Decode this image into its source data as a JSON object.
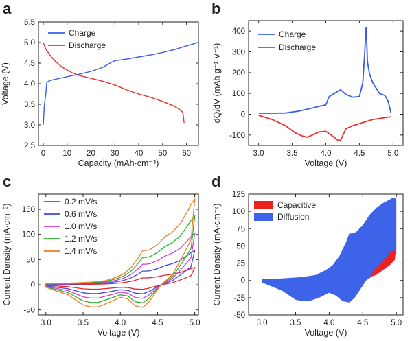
{
  "chart_data": [
    {
      "panel": "a",
      "type": "line",
      "xlabel": "Capacity (mAh·cm⁻³)",
      "ylabel": "Voltage (V)",
      "xlim": [
        -2,
        65
      ],
      "ylim": [
        2.5,
        5.5
      ],
      "xticks": [
        0,
        10,
        20,
        30,
        40,
        50,
        60
      ],
      "yticks": [
        2.5,
        3.0,
        3.5,
        4.0,
        4.5,
        5.0,
        5.5
      ],
      "legend": "top-left",
      "grid": false,
      "series": [
        {
          "name": "Charge",
          "color": "#3a5fe6",
          "x": [
            0,
            0.5,
            1,
            1.5,
            3,
            6,
            10,
            15,
            20,
            25,
            28,
            30,
            35,
            40,
            45,
            50,
            55,
            60,
            63,
            64.5
          ],
          "y": [
            3.0,
            3.5,
            3.7,
            4.04,
            4.08,
            4.12,
            4.17,
            4.23,
            4.3,
            4.4,
            4.5,
            4.56,
            4.6,
            4.65,
            4.7,
            4.76,
            4.83,
            4.92,
            4.97,
            5.0
          ]
        },
        {
          "name": "Discharge",
          "color": "#ee2d2d",
          "x": [
            0,
            1,
            3,
            5,
            8,
            12,
            15,
            20,
            25,
            30,
            35,
            40,
            45,
            50,
            55,
            57,
            58.5,
            58.8,
            59
          ],
          "y": [
            5.0,
            4.85,
            4.68,
            4.55,
            4.4,
            4.27,
            4.2,
            4.13,
            4.06,
            3.97,
            3.85,
            3.75,
            3.67,
            3.57,
            3.45,
            3.38,
            3.3,
            3.15,
            3.05
          ]
        }
      ]
    },
    {
      "panel": "b",
      "type": "line",
      "xlabel": "Voltage (V)",
      "ylabel": "dQ/dV (mAh g⁻¹ V⁻¹)",
      "xlim": [
        2.85,
        5.15
      ],
      "ylim": [
        -150,
        450
      ],
      "xticks": [
        3.0,
        3.5,
        4.0,
        4.5,
        5.0
      ],
      "yticks": [
        -100,
        0,
        100,
        200,
        300,
        400
      ],
      "legend": "top-left",
      "grid": false,
      "series": [
        {
          "name": "Charge",
          "color": "#3a5fe6",
          "x": [
            3.0,
            3.2,
            3.4,
            3.6,
            3.8,
            3.9,
            4.0,
            4.05,
            4.1,
            4.15,
            4.22,
            4.3,
            4.4,
            4.5,
            4.55,
            4.58,
            4.6,
            4.62,
            4.65,
            4.7,
            4.8,
            4.88,
            4.93,
            4.97
          ],
          "y": [
            5,
            5,
            6,
            15,
            30,
            38,
            45,
            85,
            95,
            105,
            118,
            95,
            82,
            85,
            150,
            300,
            420,
            250,
            195,
            150,
            100,
            90,
            60,
            5
          ]
        },
        {
          "name": "Discharge",
          "color": "#ee2d2d",
          "x": [
            3.0,
            3.2,
            3.4,
            3.55,
            3.65,
            3.72,
            3.8,
            3.9,
            4.0,
            4.1,
            4.18,
            4.22,
            4.3,
            4.4,
            4.5,
            4.6,
            4.7,
            4.8,
            4.9,
            4.97
          ],
          "y": [
            -5,
            -25,
            -55,
            -90,
            -105,
            -110,
            -100,
            -85,
            -82,
            -105,
            -125,
            -125,
            -70,
            -55,
            -45,
            -35,
            -25,
            -20,
            -15,
            -12
          ]
        }
      ]
    },
    {
      "panel": "c",
      "type": "line",
      "xlabel": "Voltage (V)",
      "ylabel": "Current Density (mA·cm⁻³)",
      "xlim": [
        2.9,
        5.05
      ],
      "ylim": [
        -60,
        180
      ],
      "xticks": [
        3.0,
        3.5,
        4.0,
        4.5,
        5.0
      ],
      "yticks": [
        -50,
        0,
        50,
        100,
        150
      ],
      "legend": "top-left",
      "grid": false,
      "series": [
        {
          "name": "0.2 mV/s",
          "color": "#e8242a",
          "scale": 0.2
        },
        {
          "name": "0.6 mV/s",
          "color": "#3b48e0",
          "scale": 0.4
        },
        {
          "name": "1.0 mV/s",
          "color": "#d13cdc",
          "scale": 0.6
        },
        {
          "name": "1.2 mV/s",
          "color": "#25b42a",
          "scale": 0.8
        },
        {
          "name": "1.4 mV/s",
          "color": "#f07d24",
          "scale": 1.0
        }
      ],
      "reference_curve_1p4": {
        "anodic_x": [
          3.0,
          3.3,
          3.6,
          3.8,
          3.95,
          4.05,
          4.15,
          4.25,
          4.3,
          4.35,
          4.4,
          4.5,
          4.6,
          4.7,
          4.8,
          4.9,
          4.95,
          5.0
        ],
        "anodic_y": [
          2,
          3,
          5,
          8,
          15,
          22,
          35,
          55,
          68,
          68,
          70,
          80,
          95,
          105,
          120,
          145,
          160,
          170
        ],
        "cathodic_x": [
          5.0,
          4.95,
          4.85,
          4.7,
          4.55,
          4.45,
          4.38,
          4.3,
          4.2,
          4.1,
          4.0,
          3.85,
          3.7,
          3.6,
          3.5,
          3.3,
          3.0
        ],
        "cathodic_y": [
          170,
          90,
          60,
          20,
          0,
          -20,
          -35,
          -45,
          -42,
          -28,
          -25,
          -35,
          -44,
          -44,
          -40,
          -20,
          -5
        ]
      }
    },
    {
      "panel": "d",
      "type": "area",
      "xlabel": "Voltage (V)",
      "ylabel": "Current Density (mA·cm⁻³)",
      "xlim": [
        2.8,
        5.1
      ],
      "ylim": [
        -50,
        125
      ],
      "xticks": [
        3.0,
        3.5,
        4.0,
        4.5,
        5.0
      ],
      "yticks": [
        -50,
        -25,
        0,
        25,
        50,
        75,
        100,
        125
      ],
      "legend": "top-left",
      "grid": false,
      "series": [
        {
          "name": "Diffusion",
          "color": "#3d63e8",
          "upper_x": [
            3.0,
            3.3,
            3.6,
            3.8,
            3.95,
            4.05,
            4.15,
            4.25,
            4.3,
            4.35,
            4.4,
            4.5,
            4.6,
            4.7,
            4.8,
            4.9,
            4.95,
            5.0
          ],
          "upper_y": [
            2,
            3,
            5,
            8,
            15,
            22,
            35,
            55,
            68,
            68,
            70,
            80,
            95,
            105,
            112,
            117,
            120,
            118
          ],
          "lower_x": [
            5.0,
            4.95,
            4.85,
            4.7,
            4.55,
            4.45,
            4.38,
            4.3,
            4.2,
            4.1,
            4.0,
            3.85,
            3.7,
            3.6,
            3.5,
            3.3,
            3.0
          ],
          "lower_y": [
            40,
            30,
            22,
            10,
            0,
            -15,
            -25,
            -32,
            -30,
            -22,
            -18,
            -25,
            -30,
            -30,
            -28,
            -15,
            -3
          ]
        },
        {
          "name": "Capacitive",
          "color": "#ef2020",
          "upper_x": [
            4.6,
            4.7,
            4.8,
            4.9,
            4.98
          ],
          "upper_y": [
            5,
            18,
            28,
            40,
            45
          ],
          "lower_x": [
            4.98,
            4.9,
            4.8,
            4.7,
            4.6
          ],
          "lower_y": [
            30,
            22,
            15,
            8,
            5
          ]
        }
      ]
    }
  ],
  "panels": {
    "a": {
      "letter": "a",
      "xlabel": "Capacity (mAh·cm⁻³)",
      "ylabel": "Voltage (V)",
      "legend": [
        "Charge",
        "Discharge"
      ]
    },
    "b": {
      "letter": "b",
      "xlabel": "Voltage (V)",
      "ylabel": "dQ/dV (mAh g⁻¹ V⁻¹)",
      "legend": [
        "Charge",
        "Discharge"
      ]
    },
    "c": {
      "letter": "c",
      "xlabel": "Voltage (V)",
      "ylabel": "Current Density (mA·cm⁻³)",
      "legend": [
        "0.2 mV/s",
        "0.6 mV/s",
        "1.0 mV/s",
        "1.2 mV/s",
        "1.4 mV/s"
      ]
    },
    "d": {
      "letter": "d",
      "xlabel": "Voltage (V)",
      "ylabel": "Current Density (mA·cm⁻³)",
      "legend": [
        "Capacitive",
        "Diffusion"
      ]
    }
  }
}
